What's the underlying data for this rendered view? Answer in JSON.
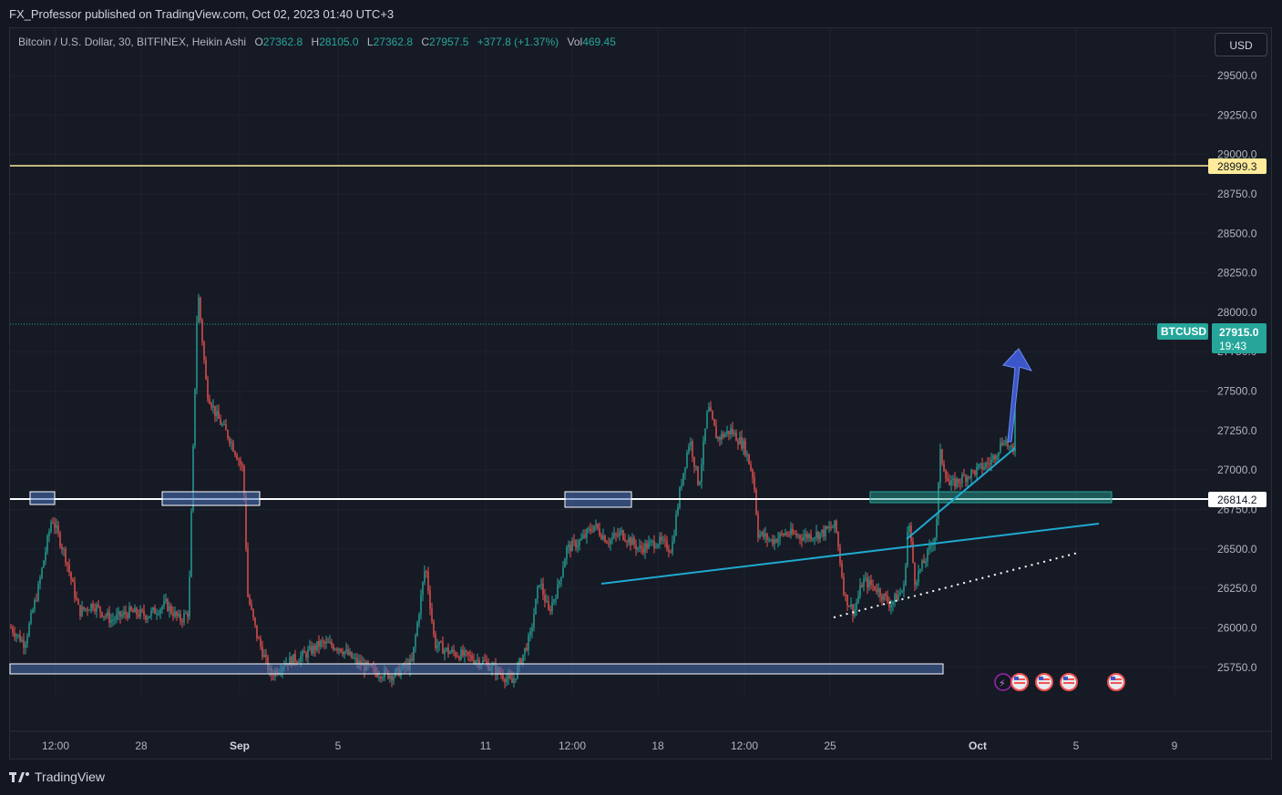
{
  "publisher": "FX_Professor published on TradingView.com, Oct 02, 2023 01:40 UTC+3",
  "legend": {
    "symbol": "Bitcoin / U.S. Dollar, 30, BITFINEX, Heikin Ashi",
    "open_label": "O",
    "open": "27362.8",
    "high_label": "H",
    "high": "28105.0",
    "low_label": "L",
    "low": "27362.8",
    "close_label": "C",
    "close": "27957.5",
    "change": "+377.8 (+1.37%)",
    "vol_label": "Vol",
    "vol": "469.45"
  },
  "currency": "USD",
  "footer_logo": "TradingView",
  "colors": {
    "up": "#26a69a",
    "down": "#ef5350",
    "trend": "#1fa9cf",
    "resistance": "#ffeb99",
    "zone": "#4a72b8",
    "arrow": "#3a56c9"
  },
  "chart_data": {
    "type": "candlestick",
    "symbol_tag": "BTCUSD",
    "y_ticks": [
      25750,
      26000,
      26250,
      26500,
      26750,
      27000,
      27250,
      27500,
      27750,
      28000,
      28250,
      28500,
      28750,
      29000,
      29250,
      29500
    ],
    "y_tick_labels": [
      "25750.0",
      "26000.0",
      "26250.0",
      "26500.0",
      "26750.0",
      "27000.0",
      "27250.0",
      "27500.0",
      "27750.0",
      "28000.0",
      "28250.0",
      "28500.0",
      "28750.0",
      "29000.0",
      "29250.0",
      "29500.0"
    ],
    "x_ticks": [
      "12:00",
      "28",
      "Sep",
      "5",
      "11",
      "12:00",
      "18",
      "12:00",
      "25",
      "Oct",
      "5",
      "9"
    ],
    "ylim": [
      25570,
      29800
    ],
    "price_series": [
      [
        0,
        26000
      ],
      [
        15,
        25900
      ],
      [
        30,
        26250
      ],
      [
        45,
        26700
      ],
      [
        60,
        26450
      ],
      [
        75,
        26100
      ],
      [
        90,
        26150
      ],
      [
        110,
        26050
      ],
      [
        130,
        26100
      ],
      [
        150,
        26080
      ],
      [
        170,
        26150
      ],
      [
        185,
        26050
      ],
      [
        195,
        26100
      ],
      [
        205,
        28150
      ],
      [
        215,
        27500
      ],
      [
        225,
        27350
      ],
      [
        240,
        27200
      ],
      [
        255,
        27000
      ],
      [
        260,
        26200
      ],
      [
        270,
        25950
      ],
      [
        285,
        25700
      ],
      [
        300,
        25780
      ],
      [
        320,
        25820
      ],
      [
        340,
        25900
      ],
      [
        360,
        25880
      ],
      [
        380,
        25780
      ],
      [
        400,
        25720
      ],
      [
        420,
        25700
      ],
      [
        440,
        25780
      ],
      [
        455,
        26400
      ],
      [
        465,
        25900
      ],
      [
        480,
        25850
      ],
      [
        500,
        25820
      ],
      [
        520,
        25780
      ],
      [
        540,
        25700
      ],
      [
        550,
        25650
      ],
      [
        560,
        25800
      ],
      [
        570,
        25950
      ],
      [
        580,
        26300
      ],
      [
        590,
        26100
      ],
      [
        600,
        26250
      ],
      [
        610,
        26500
      ],
      [
        625,
        26550
      ],
      [
        640,
        26650
      ],
      [
        655,
        26550
      ],
      [
        670,
        26600
      ],
      [
        690,
        26500
      ],
      [
        710,
        26550
      ],
      [
        725,
        26500
      ],
      [
        735,
        26900
      ],
      [
        745,
        27200
      ],
      [
        755,
        26900
      ],
      [
        765,
        27400
      ],
      [
        775,
        27200
      ],
      [
        790,
        27250
      ],
      [
        805,
        27150
      ],
      [
        815,
        26950
      ],
      [
        820,
        26600
      ],
      [
        835,
        26550
      ],
      [
        850,
        26600
      ],
      [
        870,
        26580
      ],
      [
        890,
        26600
      ],
      [
        905,
        26650
      ],
      [
        915,
        26200
      ],
      [
        925,
        26100
      ],
      [
        935,
        26300
      ],
      [
        950,
        26250
      ],
      [
        965,
        26150
      ],
      [
        980,
        26250
      ],
      [
        985,
        26700
      ],
      [
        992,
        26300
      ],
      [
        1005,
        26450
      ],
      [
        1015,
        26600
      ],
      [
        1020,
        27100
      ],
      [
        1030,
        26900
      ],
      [
        1045,
        26950
      ],
      [
        1060,
        27000
      ],
      [
        1075,
        27050
      ],
      [
        1090,
        27200
      ],
      [
        1100,
        27100
      ],
      [
        1103,
        28050
      ]
    ],
    "annotations": {
      "resistance_price": "28999.3",
      "support_price": "26814.2",
      "last_price": "27915.0",
      "countdown": "19:43"
    }
  }
}
